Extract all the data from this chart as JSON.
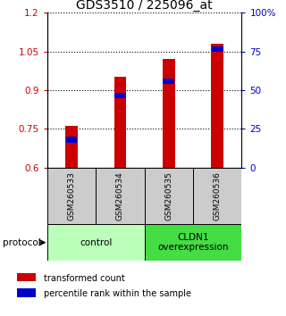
{
  "title": "GDS3510 / 225096_at",
  "samples": [
    "GSM260533",
    "GSM260534",
    "GSM260535",
    "GSM260536"
  ],
  "red_values": [
    0.762,
    0.95,
    1.02,
    1.08
  ],
  "blue_values": [
    0.708,
    0.878,
    0.935,
    1.058
  ],
  "ylim_left": [
    0.6,
    1.2
  ],
  "ylim_right": [
    0,
    100
  ],
  "yticks_left": [
    0.6,
    0.75,
    0.9,
    1.05,
    1.2
  ],
  "ytick_labels_left": [
    "0.6",
    "0.75",
    "0.9",
    "1.05",
    "1.2"
  ],
  "yticks_right": [
    0,
    25,
    50,
    75,
    100
  ],
  "ytick_labels_right": [
    "0",
    "25",
    "50",
    "75",
    "100%"
  ],
  "groups": [
    {
      "label": "control",
      "samples": [
        0,
        1
      ],
      "color": "#bbffbb"
    },
    {
      "label": "CLDN1\noverexpression",
      "samples": [
        2,
        3
      ],
      "color": "#44dd44"
    }
  ],
  "bar_color": "#cc0000",
  "blue_color": "#0000cc",
  "bar_width": 0.25,
  "background_color": "#ffffff",
  "title_fontsize": 10,
  "protocol_label": "protocol",
  "legend_red": "transformed count",
  "legend_blue": "percentile rank within the sample"
}
